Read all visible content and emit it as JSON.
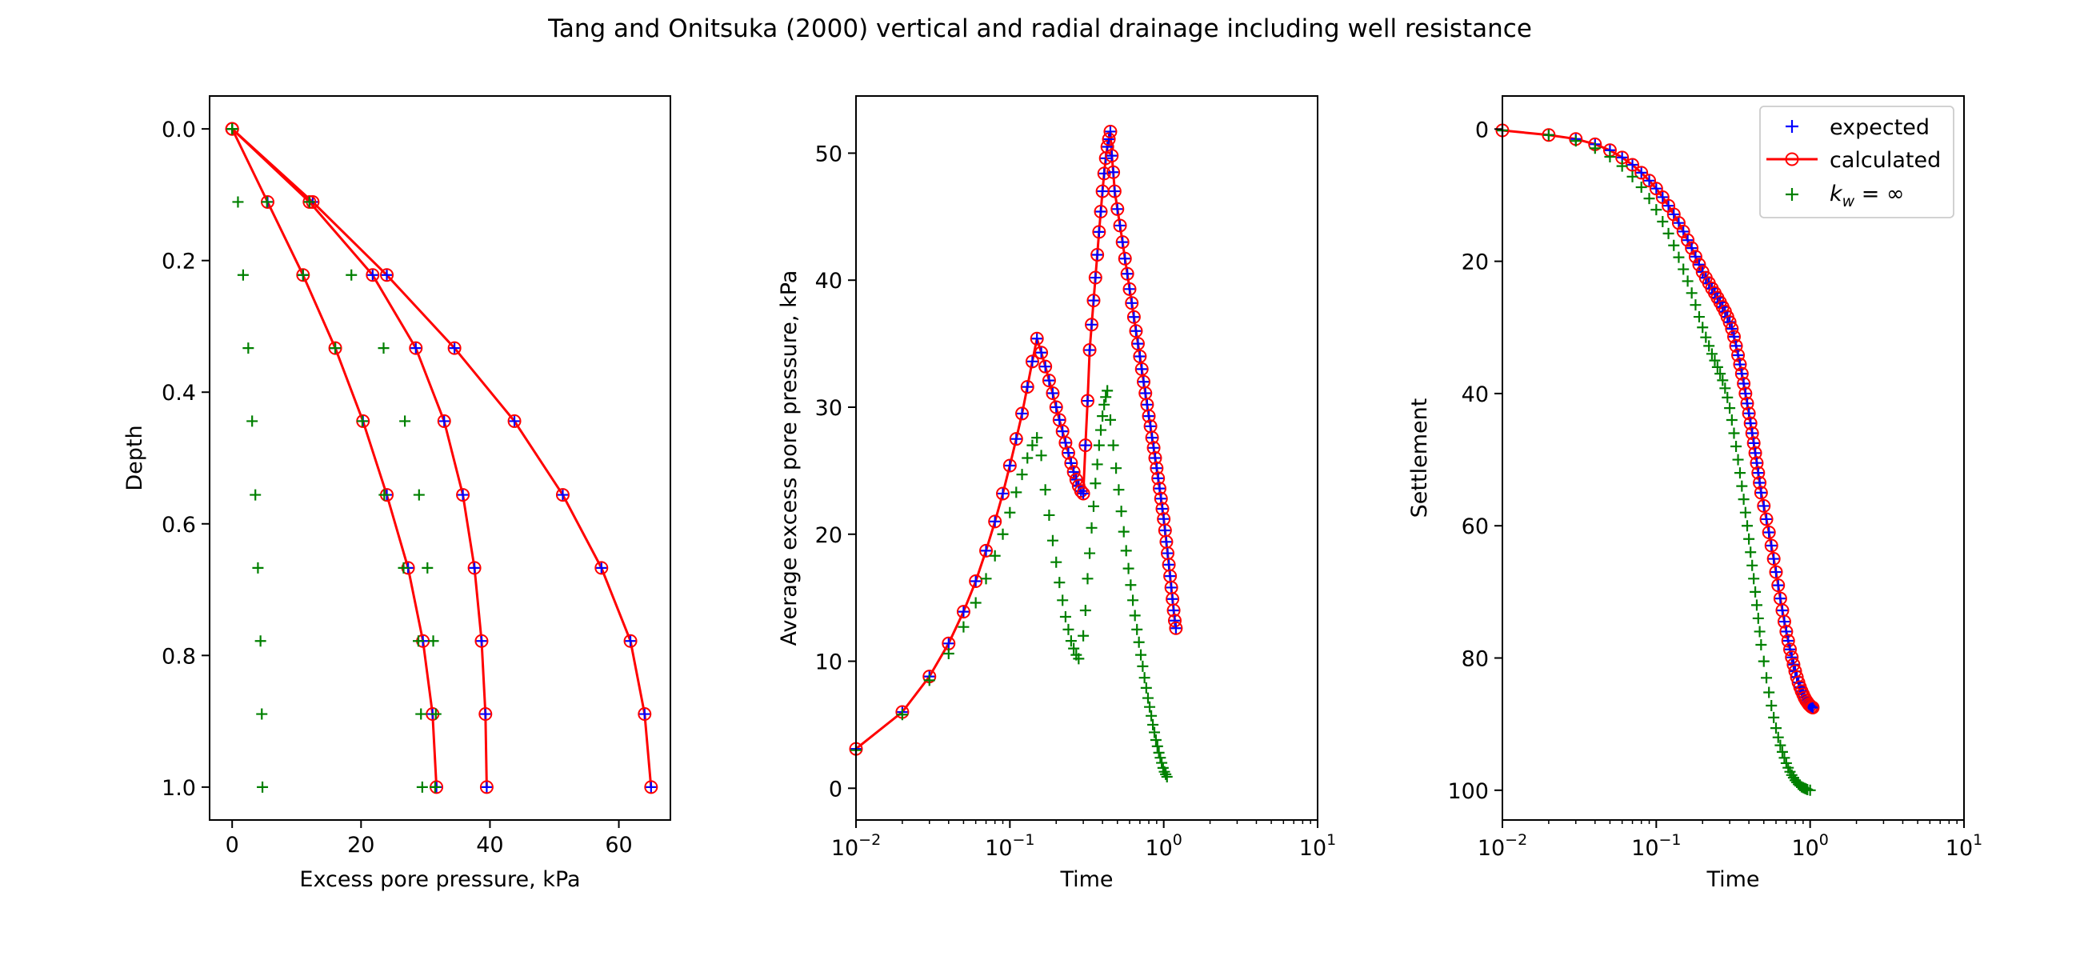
{
  "figure": {
    "title": "Tang and Onitsuka (2000) vertical and radial drainage including well resistance"
  },
  "legend": {
    "entries": [
      {
        "label": "expected",
        "color": "#0000ff",
        "marker": "plus"
      },
      {
        "label": "calculated",
        "color": "#ff0000",
        "marker": "circle-line"
      },
      {
        "label_base": "k",
        "label_sub": "w",
        "label_rest": " = ∞",
        "color": "#008000",
        "marker": "plus"
      }
    ]
  },
  "chart_data": [
    {
      "type": "line",
      "xlabel": "Excess pore pressure, kPa",
      "ylabel": "Depth",
      "xlim": [
        -3.5,
        68
      ],
      "ylim": [
        1.05,
        -0.05
      ],
      "xticks": [
        0,
        20,
        40,
        60
      ],
      "xtick_labels": [
        "0",
        "20",
        "40",
        "60"
      ],
      "yticks": [
        0.0,
        0.2,
        0.4,
        0.6,
        0.8,
        1.0
      ],
      "ytick_labels": [
        "0.0",
        "0.2",
        "0.4",
        "0.6",
        "0.8",
        "1.0"
      ],
      "depth": [
        0.0,
        0.111,
        0.222,
        0.333,
        0.444,
        0.556,
        0.667,
        0.778,
        0.889,
        1.0
      ],
      "series": [
        {
          "values": [
            0,
            12.5,
            24.0,
            34.5,
            43.8,
            51.3,
            57.3,
            61.8,
            64.0,
            65.0
          ]
        },
        {
          "values": [
            0,
            12.0,
            21.8,
            28.5,
            32.9,
            35.8,
            37.6,
            38.7,
            39.3,
            39.5
          ]
        },
        {
          "values": [
            0,
            5.5,
            11.0,
            16.0,
            20.3,
            24.0,
            27.3,
            29.6,
            31.1,
            31.7
          ]
        }
      ],
      "kw_inf_series": [
        {
          "values": [
            0,
            12.0,
            18.5,
            23.5,
            26.8,
            29.0,
            30.3,
            31.2,
            31.6,
            31.5
          ]
        },
        {
          "values": [
            0,
            5.4,
            11.0,
            16.0,
            20.2,
            23.6,
            26.6,
            28.9,
            29.3,
            29.5
          ]
        },
        {
          "values": [
            0,
            0.9,
            1.7,
            2.5,
            3.1,
            3.6,
            4.0,
            4.4,
            4.6,
            4.7
          ]
        }
      ]
    },
    {
      "type": "line",
      "xlabel": "Time",
      "ylabel": "Average excess pore pressure, kPa",
      "xscale": "log",
      "xlim": [
        0.01,
        10
      ],
      "ylim": [
        -2.5,
        54.5
      ],
      "xticks": [
        0.01,
        0.1,
        1,
        10
      ],
      "xtick_base": "10",
      "xtick_exponents": [
        "−2",
        "−1",
        "0",
        "1"
      ],
      "yticks": [
        0,
        10,
        20,
        30,
        40,
        50
      ],
      "ytick_labels": [
        "0",
        "10",
        "20",
        "30",
        "40",
        "50"
      ],
      "calculated_points": [
        [
          0.01,
          3.1
        ],
        [
          0.02,
          6.0
        ],
        [
          0.03,
          8.8
        ],
        [
          0.04,
          11.4
        ],
        [
          0.05,
          13.9
        ],
        [
          0.06,
          16.3
        ],
        [
          0.07,
          18.7
        ],
        [
          0.08,
          21.0
        ],
        [
          0.09,
          23.2
        ],
        [
          0.1,
          25.4
        ],
        [
          0.11,
          27.5
        ],
        [
          0.12,
          29.5
        ],
        [
          0.13,
          31.6
        ],
        [
          0.14,
          33.6
        ],
        [
          0.15,
          35.4
        ],
        [
          0.16,
          34.3
        ],
        [
          0.17,
          33.2
        ],
        [
          0.18,
          32.1
        ],
        [
          0.19,
          31.1
        ],
        [
          0.2,
          30.0
        ],
        [
          0.21,
          29.0
        ],
        [
          0.22,
          28.1
        ],
        [
          0.23,
          27.2
        ],
        [
          0.24,
          26.4
        ],
        [
          0.25,
          25.6
        ],
        [
          0.26,
          24.9
        ],
        [
          0.27,
          24.3
        ],
        [
          0.28,
          23.8
        ],
        [
          0.29,
          23.4
        ],
        [
          0.3,
          23.2
        ],
        [
          0.31,
          27.0
        ],
        [
          0.32,
          30.5
        ],
        [
          0.33,
          34.5
        ],
        [
          0.34,
          36.5
        ],
        [
          0.35,
          38.4
        ],
        [
          0.36,
          40.2
        ],
        [
          0.37,
          42.0
        ],
        [
          0.38,
          43.8
        ],
        [
          0.39,
          45.4
        ],
        [
          0.4,
          47.0
        ],
        [
          0.41,
          48.4
        ],
        [
          0.42,
          49.6
        ],
        [
          0.43,
          50.5
        ],
        [
          0.44,
          51.1
        ],
        [
          0.45,
          51.7
        ],
        [
          0.46,
          49.8
        ],
        [
          0.47,
          48.5
        ],
        [
          0.48,
          47.0
        ],
        [
          0.5,
          45.6
        ],
        [
          0.52,
          44.3
        ],
        [
          0.54,
          43.0
        ],
        [
          0.56,
          41.7
        ],
        [
          0.58,
          40.5
        ],
        [
          0.6,
          39.3
        ],
        [
          0.62,
          38.2
        ],
        [
          0.64,
          37.1
        ],
        [
          0.66,
          36.0
        ],
        [
          0.68,
          35.0
        ],
        [
          0.7,
          34.0
        ],
        [
          0.72,
          33.0
        ],
        [
          0.74,
          32.0
        ],
        [
          0.76,
          31.1
        ],
        [
          0.78,
          30.2
        ],
        [
          0.8,
          29.3
        ],
        [
          0.82,
          28.5
        ],
        [
          0.84,
          27.6
        ],
        [
          0.86,
          26.8
        ],
        [
          0.88,
          26.0
        ],
        [
          0.9,
          25.2
        ],
        [
          0.92,
          24.4
        ],
        [
          0.94,
          23.6
        ],
        [
          0.96,
          22.8
        ],
        [
          0.98,
          22.0
        ],
        [
          1.0,
          21.2
        ],
        [
          1.02,
          20.3
        ],
        [
          1.04,
          19.4
        ],
        [
          1.06,
          18.5
        ],
        [
          1.08,
          17.6
        ],
        [
          1.1,
          16.7
        ],
        [
          1.12,
          15.8
        ],
        [
          1.14,
          14.9
        ],
        [
          1.16,
          14.0
        ],
        [
          1.18,
          13.2
        ],
        [
          1.2,
          12.6
        ]
      ],
      "kw_inf_points": [
        [
          0.01,
          3.0
        ],
        [
          0.02,
          5.8
        ],
        [
          0.03,
          8.5
        ],
        [
          0.04,
          10.6
        ],
        [
          0.05,
          12.7
        ],
        [
          0.06,
          14.6
        ],
        [
          0.07,
          16.5
        ],
        [
          0.08,
          18.3
        ],
        [
          0.09,
          20.0
        ],
        [
          0.1,
          21.7
        ],
        [
          0.11,
          23.3
        ],
        [
          0.12,
          24.7
        ],
        [
          0.13,
          26.0
        ],
        [
          0.14,
          27.0
        ],
        [
          0.15,
          27.6
        ],
        [
          0.16,
          26.2
        ],
        [
          0.17,
          23.5
        ],
        [
          0.18,
          21.5
        ],
        [
          0.19,
          19.5
        ],
        [
          0.2,
          17.8
        ],
        [
          0.21,
          16.2
        ],
        [
          0.22,
          14.8
        ],
        [
          0.23,
          13.5
        ],
        [
          0.24,
          12.5
        ],
        [
          0.25,
          11.6
        ],
        [
          0.26,
          11.0
        ],
        [
          0.27,
          10.5
        ],
        [
          0.28,
          10.2
        ],
        [
          0.3,
          12.0
        ],
        [
          0.31,
          14.0
        ],
        [
          0.32,
          16.5
        ],
        [
          0.33,
          18.5
        ],
        [
          0.34,
          20.5
        ],
        [
          0.35,
          22.2
        ],
        [
          0.36,
          24.0
        ],
        [
          0.37,
          25.5
        ],
        [
          0.38,
          27.0
        ],
        [
          0.39,
          28.2
        ],
        [
          0.4,
          29.3
        ],
        [
          0.41,
          30.2
        ],
        [
          0.42,
          30.8
        ],
        [
          0.43,
          31.3
        ],
        [
          0.45,
          29.0
        ],
        [
          0.47,
          27.0
        ],
        [
          0.49,
          25.2
        ],
        [
          0.51,
          23.5
        ],
        [
          0.53,
          21.8
        ],
        [
          0.55,
          20.2
        ],
        [
          0.57,
          18.7
        ],
        [
          0.59,
          17.3
        ],
        [
          0.61,
          16.0
        ],
        [
          0.63,
          14.8
        ],
        [
          0.65,
          13.6
        ],
        [
          0.67,
          12.5
        ],
        [
          0.69,
          11.5
        ],
        [
          0.71,
          10.5
        ],
        [
          0.73,
          9.6
        ],
        [
          0.75,
          8.7
        ],
        [
          0.77,
          7.9
        ],
        [
          0.79,
          7.1
        ],
        [
          0.81,
          6.4
        ],
        [
          0.83,
          5.7
        ],
        [
          0.85,
          5.0
        ],
        [
          0.87,
          4.4
        ],
        [
          0.89,
          3.8
        ],
        [
          0.91,
          3.3
        ],
        [
          0.93,
          2.8
        ],
        [
          0.95,
          2.4
        ],
        [
          0.97,
          2.0
        ],
        [
          0.99,
          1.6
        ],
        [
          1.01,
          1.3
        ],
        [
          1.03,
          1.1
        ],
        [
          1.05,
          0.9
        ]
      ]
    },
    {
      "type": "line",
      "xlabel": "Time",
      "ylabel": "Settlement",
      "xscale": "log",
      "xlim": [
        0.01,
        10
      ],
      "ylim": [
        104.5,
        -5
      ],
      "xticks": [
        0.01,
        0.1,
        1,
        10
      ],
      "xtick_base": "10",
      "xtick_exponents": [
        "−2",
        "−1",
        "0",
        "1"
      ],
      "yticks": [
        0,
        20,
        40,
        60,
        80,
        100
      ],
      "ytick_labels": [
        "0",
        "20",
        "40",
        "60",
        "80",
        "100"
      ],
      "calculated_points": [
        [
          0.01,
          0.2
        ],
        [
          0.02,
          0.9
        ],
        [
          0.03,
          1.5
        ],
        [
          0.04,
          2.3
        ],
        [
          0.05,
          3.2
        ],
        [
          0.06,
          4.3
        ],
        [
          0.07,
          5.4
        ],
        [
          0.08,
          6.6
        ],
        [
          0.09,
          7.8
        ],
        [
          0.1,
          9.0
        ],
        [
          0.11,
          10.3
        ],
        [
          0.12,
          11.6
        ],
        [
          0.13,
          12.9
        ],
        [
          0.14,
          14.2
        ],
        [
          0.15,
          15.5
        ],
        [
          0.16,
          16.8
        ],
        [
          0.17,
          18.0
        ],
        [
          0.18,
          19.3
        ],
        [
          0.19,
          20.5
        ],
        [
          0.2,
          21.6
        ],
        [
          0.21,
          22.5
        ],
        [
          0.22,
          23.3
        ],
        [
          0.23,
          24.1
        ],
        [
          0.24,
          24.8
        ],
        [
          0.25,
          25.5
        ],
        [
          0.26,
          26.2
        ],
        [
          0.27,
          26.9
        ],
        [
          0.28,
          27.6
        ],
        [
          0.29,
          28.4
        ],
        [
          0.3,
          29.2
        ],
        [
          0.31,
          30.2
        ],
        [
          0.32,
          31.4
        ],
        [
          0.33,
          32.8
        ],
        [
          0.34,
          34.2
        ],
        [
          0.35,
          35.6
        ],
        [
          0.36,
          37.0
        ],
        [
          0.37,
          38.5
        ],
        [
          0.38,
          40.0
        ],
        [
          0.39,
          41.5
        ],
        [
          0.4,
          43.0
        ],
        [
          0.41,
          44.5
        ],
        [
          0.42,
          46.0
        ],
        [
          0.43,
          47.5
        ],
        [
          0.44,
          49.0
        ],
        [
          0.45,
          50.5
        ],
        [
          0.46,
          52.0
        ],
        [
          0.47,
          53.5
        ],
        [
          0.48,
          55.0
        ],
        [
          0.5,
          57.0
        ],
        [
          0.52,
          59.0
        ],
        [
          0.54,
          61.0
        ],
        [
          0.56,
          63.0
        ],
        [
          0.58,
          65.0
        ],
        [
          0.6,
          67.0
        ],
        [
          0.62,
          69.0
        ],
        [
          0.64,
          71.0
        ],
        [
          0.66,
          72.8
        ],
        [
          0.68,
          74.5
        ],
        [
          0.7,
          76.0
        ],
        [
          0.72,
          77.4
        ],
        [
          0.74,
          78.7
        ],
        [
          0.76,
          79.9
        ],
        [
          0.78,
          81.0
        ],
        [
          0.8,
          82.0
        ],
        [
          0.82,
          82.9
        ],
        [
          0.84,
          83.7
        ],
        [
          0.86,
          84.4
        ],
        [
          0.88,
          85.0
        ],
        [
          0.9,
          85.5
        ],
        [
          0.92,
          86.0
        ],
        [
          0.94,
          86.4
        ],
        [
          0.96,
          86.7
        ],
        [
          0.98,
          87.0
        ],
        [
          1.0,
          87.2
        ],
        [
          1.02,
          87.4
        ],
        [
          1.04,
          87.5
        ]
      ],
      "kw_inf_points": [
        [
          0.01,
          0.2
        ],
        [
          0.02,
          0.9
        ],
        [
          0.03,
          1.8
        ],
        [
          0.04,
          2.9
        ],
        [
          0.05,
          4.2
        ],
        [
          0.06,
          5.6
        ],
        [
          0.07,
          7.2
        ],
        [
          0.08,
          8.8
        ],
        [
          0.09,
          10.5
        ],
        [
          0.1,
          12.2
        ],
        [
          0.11,
          14.0
        ],
        [
          0.12,
          15.8
        ],
        [
          0.13,
          17.6
        ],
        [
          0.14,
          19.4
        ],
        [
          0.15,
          21.2
        ],
        [
          0.16,
          23.0
        ],
        [
          0.17,
          24.8
        ],
        [
          0.18,
          26.6
        ],
        [
          0.19,
          28.4
        ],
        [
          0.2,
          30.0
        ],
        [
          0.21,
          31.5
        ],
        [
          0.22,
          32.8
        ],
        [
          0.23,
          34.0
        ],
        [
          0.24,
          35.0
        ],
        [
          0.25,
          36.0
        ],
        [
          0.26,
          37.0
        ],
        [
          0.27,
          38.0
        ],
        [
          0.28,
          39.2
        ],
        [
          0.29,
          40.6
        ],
        [
          0.3,
          42.2
        ],
        [
          0.31,
          44.0
        ],
        [
          0.32,
          46.0
        ],
        [
          0.33,
          48.0
        ],
        [
          0.34,
          50.0
        ],
        [
          0.35,
          52.0
        ],
        [
          0.36,
          54.0
        ],
        [
          0.37,
          56.0
        ],
        [
          0.38,
          58.0
        ],
        [
          0.39,
          60.0
        ],
        [
          0.4,
          62.0
        ],
        [
          0.41,
          64.0
        ],
        [
          0.42,
          66.0
        ],
        [
          0.43,
          68.0
        ],
        [
          0.44,
          70.0
        ],
        [
          0.45,
          72.0
        ],
        [
          0.46,
          74.0
        ],
        [
          0.47,
          76.0
        ],
        [
          0.48,
          78.0
        ],
        [
          0.5,
          80.5
        ],
        [
          0.52,
          83.0
        ],
        [
          0.54,
          85.2
        ],
        [
          0.56,
          87.2
        ],
        [
          0.58,
          89.0
        ],
        [
          0.6,
          90.6
        ],
        [
          0.62,
          92.0
        ],
        [
          0.64,
          93.2
        ],
        [
          0.66,
          94.2
        ],
        [
          0.68,
          95.1
        ],
        [
          0.7,
          95.9
        ],
        [
          0.72,
          96.6
        ],
        [
          0.74,
          97.2
        ],
        [
          0.76,
          97.7
        ],
        [
          0.78,
          98.1
        ],
        [
          0.8,
          98.5
        ],
        [
          0.82,
          98.8
        ],
        [
          0.84,
          99.1
        ],
        [
          0.86,
          99.3
        ],
        [
          0.88,
          99.5
        ],
        [
          0.9,
          99.6
        ],
        [
          0.92,
          99.7
        ],
        [
          0.94,
          99.8
        ],
        [
          0.96,
          99.9
        ],
        [
          1.0,
          100.0
        ]
      ]
    }
  ]
}
